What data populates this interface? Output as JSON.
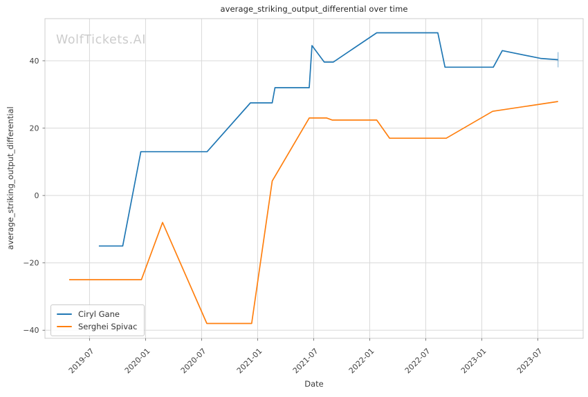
{
  "watermark": "WolfTickets.AI",
  "chart_data": {
    "type": "line",
    "title": "average_striking_output_differential over time",
    "xlabel": "Date",
    "ylabel": "average_striking_output_differential",
    "grid": true,
    "legend_position": "lower left",
    "x_tick_labels": [
      "2019-07",
      "2020-01",
      "2020-07",
      "2021-01",
      "2021-07",
      "2022-01",
      "2022-07",
      "2023-01",
      "2023-07"
    ],
    "y_ticks": [
      40,
      20,
      0,
      -20,
      -40
    ],
    "y_tick_labels": [
      "40",
      "20",
      "0",
      "−20",
      "−40"
    ],
    "xlim": [
      "2019-02-08",
      "2023-11-27"
    ],
    "ylim": [
      -42.4,
      52.5
    ],
    "series": [
      {
        "name": "Ciryl Gane",
        "color": "#1f77b4",
        "end_tick_marker": true,
        "points": [
          [
            "2019-08-01",
            -15
          ],
          [
            "2019-10-18",
            -15
          ],
          [
            "2019-12-16",
            13
          ],
          [
            "2020-07-19",
            13
          ],
          [
            "2020-12-08",
            27.5
          ],
          [
            "2021-02-18",
            27.5
          ],
          [
            "2021-02-27",
            32
          ],
          [
            "2021-06-17",
            32
          ],
          [
            "2021-06-26",
            44.5
          ],
          [
            "2021-08-05",
            39.6
          ],
          [
            "2021-09-04",
            39.6
          ],
          [
            "2022-01-24",
            48.3
          ],
          [
            "2022-08-10",
            48.3
          ],
          [
            "2022-09-03",
            38.1
          ],
          [
            "2023-02-08",
            38.1
          ],
          [
            "2023-03-07",
            43
          ],
          [
            "2023-07-10",
            40.7
          ],
          [
            "2023-09-06",
            40.3
          ]
        ]
      },
      {
        "name": "Serghei Spivac",
        "color": "#ff7f0e",
        "end_tick_marker": false,
        "points": [
          [
            "2019-04-26",
            -25
          ],
          [
            "2019-12-18",
            -25
          ],
          [
            "2020-02-26",
            -8
          ],
          [
            "2020-07-18",
            -38
          ],
          [
            "2020-12-12",
            -38
          ],
          [
            "2021-02-18",
            4.3
          ],
          [
            "2021-06-17",
            23
          ],
          [
            "2021-08-13",
            23
          ],
          [
            "2021-09-01",
            22.4
          ],
          [
            "2022-01-24",
            22.4
          ],
          [
            "2022-03-05",
            17
          ],
          [
            "2022-09-07",
            17
          ],
          [
            "2023-02-06",
            25
          ],
          [
            "2023-09-06",
            27.9
          ]
        ]
      }
    ]
  },
  "colors": {
    "background": "#ffffff",
    "grid": "#d9d9d9",
    "spine": "#cccccc",
    "tick_mark": "#707070",
    "tick_text": "#404040",
    "title_text": "#262626",
    "watermark_text": "#cccccc"
  }
}
